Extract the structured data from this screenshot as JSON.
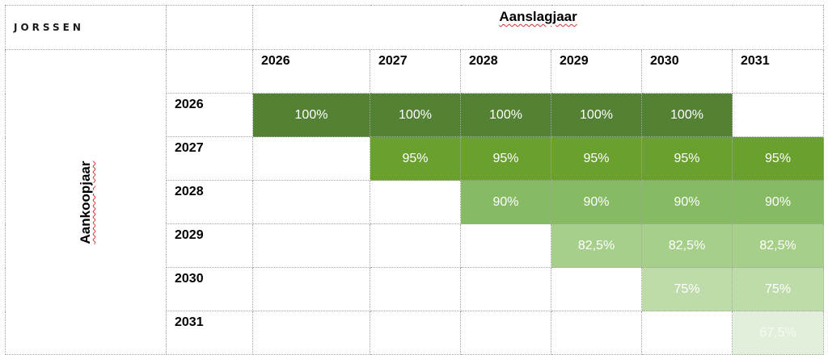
{
  "brand": {
    "logo_text": "JORSSEN"
  },
  "table": {
    "column_axis_title": "Aanslagjaar",
    "row_axis_title": "Aankoopjaar",
    "columns": [
      "2026",
      "2027",
      "2028",
      "2029",
      "2030",
      "2031"
    ],
    "rows": [
      {
        "year": "2026",
        "cells": [
          "100%",
          "100%",
          "100%",
          "100%",
          "100%",
          ""
        ]
      },
      {
        "year": "2027",
        "cells": [
          "",
          "95%",
          "95%",
          "95%",
          "95%",
          "95%"
        ]
      },
      {
        "year": "2028",
        "cells": [
          "",
          "",
          "90%",
          "90%",
          "90%",
          "90%"
        ]
      },
      {
        "year": "2029",
        "cells": [
          "",
          "",
          "",
          "82,5%",
          "82,5%",
          "82,5%"
        ]
      },
      {
        "year": "2030",
        "cells": [
          "",
          "",
          "",
          "",
          "75%",
          "75%"
        ]
      },
      {
        "year": "2031",
        "cells": [
          "",
          "",
          "",
          "",
          "",
          "67,5%"
        ]
      }
    ]
  },
  "colors": {
    "row_2026": "#548235",
    "row_2027": "#6aa02e",
    "row_2028": "#86bb64",
    "row_2029": "#a6cf89",
    "row_2030": "#bedcaa",
    "row_2031": "#e2efda"
  }
}
